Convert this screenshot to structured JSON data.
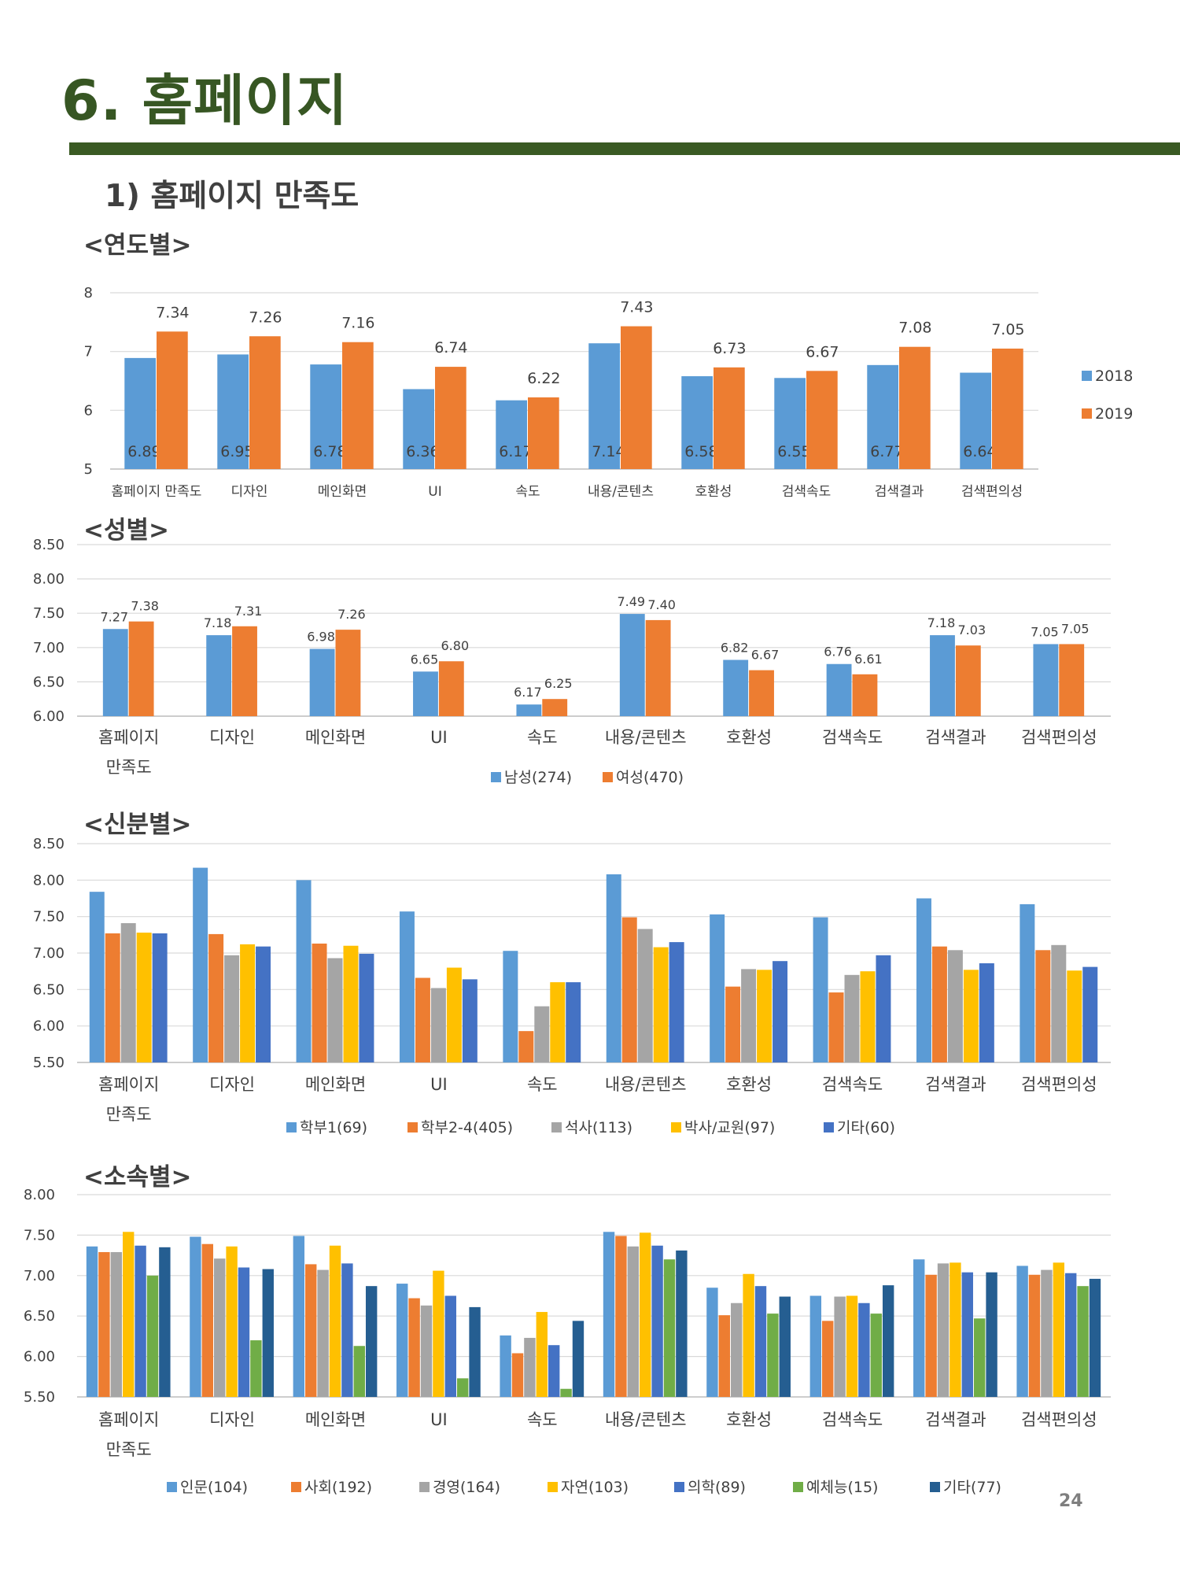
{
  "page": {
    "title": "6. 홈페이지",
    "section": "1) 홈페이지 만족도",
    "page_number": "24"
  },
  "headings": {
    "year": "<연도별>",
    "gender": "<성별>",
    "status": "<신분별>",
    "affiliation": "<소속별>"
  },
  "chart_data": [
    {
      "id": "year",
      "type": "bar",
      "title": "<연도별>",
      "categories": [
        "홈페이지 만족도",
        "디자인",
        "메인화면",
        "UI",
        "속도",
        "내용/콘텐츠",
        "호환성",
        "검색속도",
        "검색결과",
        "검색편의성"
      ],
      "series": [
        {
          "name": "2018",
          "color": "#5b9bd5",
          "values": [
            6.89,
            6.95,
            6.78,
            6.36,
            6.17,
            7.14,
            6.58,
            6.55,
            6.77,
            6.64
          ],
          "labels": [
            "6.89",
            "6.95",
            "6.78",
            "6.36",
            "6.17",
            "7.14",
            "6.58",
            "6.55",
            "6.77",
            "6.64"
          ]
        },
        {
          "name": "2019",
          "color": "#ed7d31",
          "values": [
            7.34,
            7.26,
            7.16,
            6.74,
            6.22,
            7.43,
            6.73,
            6.67,
            7.08,
            7.05
          ],
          "labels": [
            "7.34",
            "7.26",
            "7.16",
            "6.74",
            "6.22",
            "7.43",
            "6.73",
            "6.67",
            "7.08",
            "7.05"
          ]
        }
      ],
      "ylim": [
        5,
        8
      ],
      "yticks": [
        "5",
        "6",
        "7",
        "8"
      ],
      "legend": "right",
      "grid": true
    },
    {
      "id": "gender",
      "type": "bar",
      "title": "<성별>",
      "categories": [
        "홈페이지 만족도",
        "디자인",
        "메인화면",
        "UI",
        "속도",
        "내용/콘텐츠",
        "호환성",
        "검색속도",
        "검색결과",
        "검색편의성"
      ],
      "series": [
        {
          "name": "남성(274)",
          "color": "#5b9bd5",
          "values": [
            7.27,
            7.18,
            6.98,
            6.65,
            6.17,
            7.49,
            6.82,
            6.76,
            7.18,
            7.05
          ],
          "labels": [
            "7.27",
            "7.18",
            "6.98",
            "6.65",
            "6.17",
            "7.49",
            "6.82",
            "6.76",
            "7.18",
            "7.05"
          ]
        },
        {
          "name": "여성(470)",
          "color": "#ed7d31",
          "values": [
            7.38,
            7.31,
            7.26,
            6.8,
            6.25,
            7.4,
            6.67,
            6.61,
            7.03,
            7.05
          ],
          "labels": [
            "7.38",
            "7.31",
            "7.26",
            "6.80",
            "6.25",
            "7.40",
            "6.67",
            "6.61",
            "7.03",
            "7.05"
          ]
        }
      ],
      "ylim": [
        6.0,
        8.5
      ],
      "yticks": [
        "6.00",
        "6.50",
        "7.00",
        "7.50",
        "8.00",
        "8.50"
      ],
      "legend": "bottom",
      "grid": true
    },
    {
      "id": "status",
      "type": "bar",
      "title": "<신분별>",
      "categories": [
        "홈페이지 만족도",
        "디자인",
        "메인화면",
        "UI",
        "속도",
        "내용/콘텐츠",
        "호환성",
        "검색속도",
        "검색결과",
        "검색편의성"
      ],
      "series": [
        {
          "name": "학부1(69)",
          "color": "#5b9bd5",
          "values": [
            7.84,
            8.17,
            8.0,
            7.57,
            7.03,
            8.08,
            7.53,
            7.49,
            7.75,
            7.67
          ]
        },
        {
          "name": "학부2-4(405)",
          "color": "#ed7d31",
          "values": [
            7.27,
            7.26,
            7.13,
            6.66,
            5.93,
            7.49,
            6.54,
            6.46,
            7.09,
            7.04
          ]
        },
        {
          "name": "석사(113)",
          "color": "#a5a5a5",
          "values": [
            7.41,
            6.97,
            6.93,
            6.52,
            6.27,
            7.33,
            6.78,
            6.7,
            7.04,
            7.11
          ]
        },
        {
          "name": "박사/교원(97)",
          "color": "#ffc000",
          "values": [
            7.28,
            7.12,
            7.1,
            6.8,
            6.6,
            7.08,
            6.77,
            6.75,
            6.77,
            6.76
          ]
        },
        {
          "name": "기타(60)",
          "color": "#4472c4",
          "values": [
            7.27,
            7.09,
            6.99,
            6.64,
            6.6,
            7.15,
            6.89,
            6.97,
            6.86,
            6.81
          ]
        }
      ],
      "ylim": [
        5.5,
        8.5
      ],
      "yticks": [
        "5.50",
        "6.00",
        "6.50",
        "7.00",
        "7.50",
        "8.00",
        "8.50"
      ],
      "legend": "bottom",
      "grid": true
    },
    {
      "id": "affiliation",
      "type": "bar",
      "title": "<소속별>",
      "categories": [
        "홈페이지 만족도",
        "디자인",
        "메인화면",
        "UI",
        "속도",
        "내용/콘텐츠",
        "호환성",
        "검색속도",
        "검색결과",
        "검색편의성"
      ],
      "series": [
        {
          "name": "인문(104)",
          "color": "#5b9bd5",
          "values": [
            7.36,
            7.48,
            7.49,
            6.9,
            6.26,
            7.54,
            6.85,
            6.75,
            7.2,
            7.12
          ]
        },
        {
          "name": "사회(192)",
          "color": "#ed7d31",
          "values": [
            7.29,
            7.39,
            7.14,
            6.72,
            6.04,
            7.49,
            6.51,
            6.44,
            7.01,
            7.01
          ]
        },
        {
          "name": "경영(164)",
          "color": "#a5a5a5",
          "values": [
            7.29,
            7.21,
            7.07,
            6.63,
            6.23,
            7.36,
            6.66,
            6.74,
            7.15,
            7.07
          ]
        },
        {
          "name": "자연(103)",
          "color": "#ffc000",
          "values": [
            7.54,
            7.36,
            7.37,
            7.06,
            6.55,
            7.53,
            7.02,
            6.75,
            7.16,
            7.16
          ]
        },
        {
          "name": "의학(89)",
          "color": "#4472c4",
          "values": [
            7.37,
            7.1,
            7.15,
            6.75,
            6.14,
            7.37,
            6.87,
            6.66,
            7.04,
            7.03
          ]
        },
        {
          "name": "예체능(15)",
          "color": "#70ad47",
          "values": [
            7.0,
            6.2,
            6.13,
            5.73,
            5.6,
            7.2,
            6.53,
            6.53,
            6.47,
            6.87
          ]
        },
        {
          "name": "기타(77)",
          "color": "#255e91",
          "values": [
            7.35,
            7.08,
            6.87,
            6.61,
            6.44,
            7.31,
            6.74,
            6.88,
            7.04,
            6.96
          ]
        }
      ],
      "ylim": [
        5.5,
        8.0
      ],
      "yticks": [
        "5.50",
        "6.00",
        "6.50",
        "7.00",
        "7.50",
        "8.00"
      ],
      "legend": "bottom",
      "grid": true
    }
  ]
}
